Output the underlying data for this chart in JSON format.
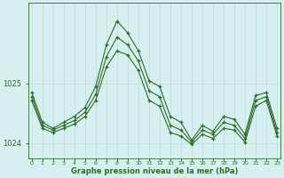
{
  "xlabel": "Graphe pression niveau de la mer (hPa)",
  "hours": [
    0,
    1,
    2,
    3,
    4,
    5,
    6,
    7,
    8,
    9,
    10,
    11,
    12,
    13,
    14,
    15,
    16,
    17,
    18,
    19,
    20,
    21,
    22,
    23
  ],
  "series_max": [
    1024.85,
    1024.35,
    1024.25,
    1024.35,
    1024.45,
    1024.6,
    1024.95,
    1025.65,
    1026.05,
    1025.85,
    1025.55,
    1025.05,
    1024.95,
    1024.45,
    1024.35,
    1024.05,
    1024.3,
    1024.2,
    1024.45,
    1024.4,
    1024.15,
    1024.8,
    1024.85,
    1024.25
  ],
  "series_mean": [
    1024.78,
    1024.3,
    1024.22,
    1024.3,
    1024.38,
    1024.52,
    1024.82,
    1025.45,
    1025.78,
    1025.65,
    1025.38,
    1024.88,
    1024.78,
    1024.3,
    1024.22,
    1024.02,
    1024.22,
    1024.15,
    1024.35,
    1024.3,
    1024.08,
    1024.72,
    1024.78,
    1024.18
  ],
  "series_min": [
    1024.72,
    1024.25,
    1024.18,
    1024.25,
    1024.32,
    1024.45,
    1024.72,
    1025.28,
    1025.55,
    1025.48,
    1025.22,
    1024.72,
    1024.62,
    1024.18,
    1024.12,
    1023.98,
    1024.15,
    1024.08,
    1024.25,
    1024.22,
    1024.02,
    1024.62,
    1024.72,
    1024.12
  ],
  "line_color": "#2d6a2d",
  "bg_color": "#d6f0f0",
  "grid_color": "#c8dede",
  "tick_color": "#2d6a2d",
  "ylim_min": 1023.75,
  "ylim_max": 1026.35,
  "yticks": [
    1024,
    1025
  ],
  "figsize": [
    3.2,
    2.0
  ],
  "dpi": 100
}
